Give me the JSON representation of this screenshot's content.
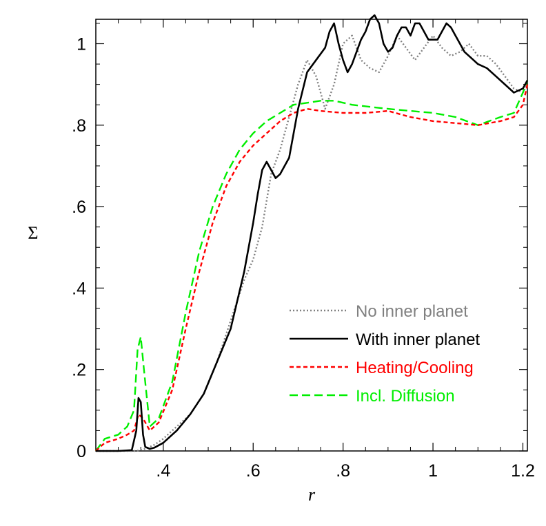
{
  "chart_data": {
    "type": "line",
    "xlabel": "r",
    "ylabel": "Σ",
    "xlim": [
      0.25,
      1.21
    ],
    "ylim": [
      0,
      1.06
    ],
    "xticks": [
      {
        "value": 0.4,
        "label": ".4"
      },
      {
        "value": 0.6,
        "label": ".6"
      },
      {
        "value": 0.8,
        "label": ".8"
      },
      {
        "value": 1.0,
        "label": "1"
      },
      {
        "value": 1.2,
        "label": "1.2"
      }
    ],
    "yticks": [
      {
        "value": 0,
        "label": "0"
      },
      {
        "value": 0.2,
        "label": ".2"
      },
      {
        "value": 0.4,
        "label": ".4"
      },
      {
        "value": 0.6,
        "label": ".6"
      },
      {
        "value": 0.8,
        "label": ".8"
      },
      {
        "value": 1.0,
        "label": "1"
      }
    ],
    "legend_position": "bottom-right",
    "grid": false,
    "series": [
      {
        "name": "No inner planet",
        "color": "#808080",
        "style": "dotted",
        "x": [
          0.25,
          0.3,
          0.34,
          0.36,
          0.38,
          0.4,
          0.43,
          0.46,
          0.49,
          0.52,
          0.55,
          0.58,
          0.6,
          0.62,
          0.64,
          0.66,
          0.68,
          0.7,
          0.72,
          0.74,
          0.76,
          0.78,
          0.8,
          0.82,
          0.84,
          0.86,
          0.88,
          0.9,
          0.92,
          0.94,
          0.96,
          0.98,
          1.0,
          1.02,
          1.04,
          1.06,
          1.08,
          1.1,
          1.12,
          1.14,
          1.16,
          1.18,
          1.2,
          1.21
        ],
        "y": [
          0,
          0,
          0,
          0.005,
          0.015,
          0.03,
          0.06,
          0.09,
          0.14,
          0.22,
          0.32,
          0.42,
          0.47,
          0.55,
          0.68,
          0.74,
          0.82,
          0.9,
          0.96,
          0.92,
          0.84,
          0.9,
          1.0,
          1.02,
          0.96,
          0.94,
          0.93,
          0.97,
          1.02,
          0.99,
          0.96,
          0.99,
          1.02,
          0.99,
          0.97,
          0.98,
          1.0,
          0.97,
          0.97,
          0.95,
          0.92,
          0.89,
          0.88,
          0.9
        ]
      },
      {
        "name": "With inner planet",
        "color": "#000000",
        "style": "solid",
        "x": [
          0.25,
          0.3,
          0.33,
          0.34,
          0.345,
          0.35,
          0.355,
          0.36,
          0.37,
          0.38,
          0.4,
          0.43,
          0.46,
          0.49,
          0.52,
          0.55,
          0.58,
          0.6,
          0.61,
          0.62,
          0.63,
          0.64,
          0.65,
          0.66,
          0.67,
          0.68,
          0.7,
          0.72,
          0.74,
          0.76,
          0.77,
          0.78,
          0.79,
          0.8,
          0.81,
          0.82,
          0.83,
          0.84,
          0.85,
          0.86,
          0.87,
          0.88,
          0.89,
          0.9,
          0.91,
          0.92,
          0.93,
          0.94,
          0.95,
          0.96,
          0.97,
          0.98,
          0.99,
          1.0,
          1.01,
          1.02,
          1.03,
          1.04,
          1.05,
          1.06,
          1.07,
          1.08,
          1.09,
          1.1,
          1.12,
          1.14,
          1.16,
          1.18,
          1.2,
          1.21
        ],
        "y": [
          0,
          0,
          0.002,
          0.05,
          0.13,
          0.12,
          0.04,
          0.01,
          0.005,
          0.008,
          0.02,
          0.05,
          0.09,
          0.14,
          0.22,
          0.3,
          0.44,
          0.56,
          0.63,
          0.69,
          0.71,
          0.69,
          0.67,
          0.68,
          0.7,
          0.72,
          0.84,
          0.93,
          0.96,
          0.99,
          1.03,
          1.05,
          1.0,
          0.96,
          0.93,
          0.95,
          0.98,
          1.01,
          1.03,
          1.06,
          1.07,
          1.05,
          1.0,
          0.98,
          0.99,
          1.02,
          1.04,
          1.04,
          1.02,
          1.05,
          1.05,
          1.03,
          1.01,
          1.01,
          1.01,
          1.03,
          1.05,
          1.04,
          1.02,
          1.0,
          0.98,
          0.97,
          0.96,
          0.95,
          0.94,
          0.92,
          0.9,
          0.88,
          0.89,
          0.91
        ]
      },
      {
        "name": "Heating/Cooling",
        "color": "#ff0000",
        "style": "dashed",
        "x": [
          0.25,
          0.27,
          0.3,
          0.32,
          0.335,
          0.345,
          0.355,
          0.37,
          0.39,
          0.42,
          0.45,
          0.48,
          0.51,
          0.54,
          0.57,
          0.6,
          0.63,
          0.66,
          0.69,
          0.72,
          0.75,
          0.8,
          0.85,
          0.9,
          0.95,
          1.0,
          1.05,
          1.1,
          1.15,
          1.18,
          1.2,
          1.21
        ],
        "y": [
          0,
          0.02,
          0.03,
          0.04,
          0.05,
          0.09,
          0.08,
          0.05,
          0.07,
          0.15,
          0.3,
          0.44,
          0.56,
          0.65,
          0.71,
          0.75,
          0.78,
          0.81,
          0.83,
          0.84,
          0.835,
          0.83,
          0.83,
          0.835,
          0.82,
          0.81,
          0.805,
          0.8,
          0.81,
          0.82,
          0.85,
          0.9
        ]
      },
      {
        "name": "Incl. Diffusion",
        "color": "#00ee00",
        "style": "longdash",
        "x": [
          0.25,
          0.27,
          0.3,
          0.32,
          0.335,
          0.343,
          0.35,
          0.357,
          0.37,
          0.39,
          0.42,
          0.45,
          0.48,
          0.51,
          0.54,
          0.57,
          0.6,
          0.63,
          0.66,
          0.69,
          0.72,
          0.75,
          0.78,
          0.82,
          0.86,
          0.9,
          0.95,
          1.0,
          1.05,
          1.1,
          1.15,
          1.18,
          1.2,
          1.21
        ],
        "y": [
          0,
          0.03,
          0.04,
          0.06,
          0.1,
          0.25,
          0.28,
          0.2,
          0.06,
          0.08,
          0.17,
          0.34,
          0.49,
          0.6,
          0.68,
          0.74,
          0.78,
          0.81,
          0.83,
          0.85,
          0.855,
          0.86,
          0.86,
          0.85,
          0.845,
          0.84,
          0.835,
          0.83,
          0.82,
          0.8,
          0.82,
          0.83,
          0.88,
          0.91
        ]
      }
    ]
  }
}
